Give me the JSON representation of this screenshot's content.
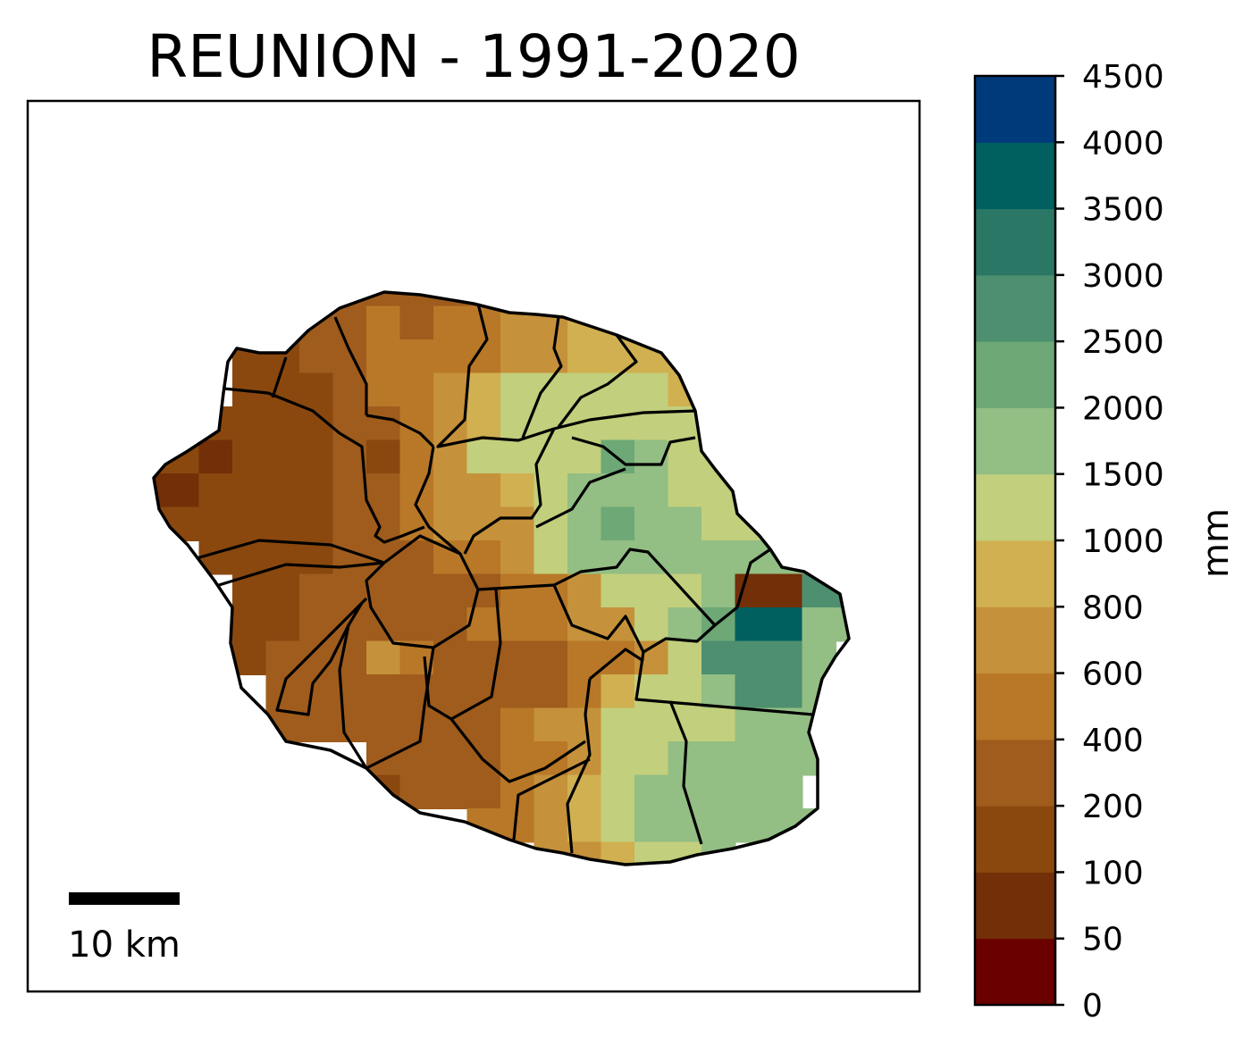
{
  "chart_data": {
    "type": "heatmap",
    "title": "REUNION - 1991-2020",
    "colorbar": {
      "label": "mm",
      "ticks": [
        "0",
        "50",
        "100",
        "200",
        "400",
        "600",
        "800",
        "1000",
        "1500",
        "2000",
        "2500",
        "3000",
        "3500",
        "4000",
        "4500"
      ],
      "colors": [
        "#6b0000",
        "#722f08",
        "#8a480f",
        "#9f5c1c",
        "#b87828",
        "#c5913a",
        "#d0b050",
        "#c2cf7c",
        "#93be84",
        "#6ea876",
        "#4d8f6f",
        "#2b7766",
        "#006060",
        "#003a7a"
      ]
    },
    "scale_bar": {
      "label": "10 km",
      "value_km": 10
    },
    "grid_class_rows": [
      ".....3333333333......",
      "....33434455666......",
      "..2233444455666666...",
      "..22234456777776666..",
      ".2222334567777777....",
      "21222324577779877....",
      "1222233455678887777..",
      "22222334555789887778.",
      ".2222333445788888888.",
      "..22333333445777811aa98",
      "..223333344455789cc88",
      "..23335433334457aaa8.",
      "...33333333346778aa8.",
      "...33333334557777888.",
      "......33334457788888.",
      "......2333456788888..",
      ".........44567888888.",
      "...........556778...."
    ]
  }
}
